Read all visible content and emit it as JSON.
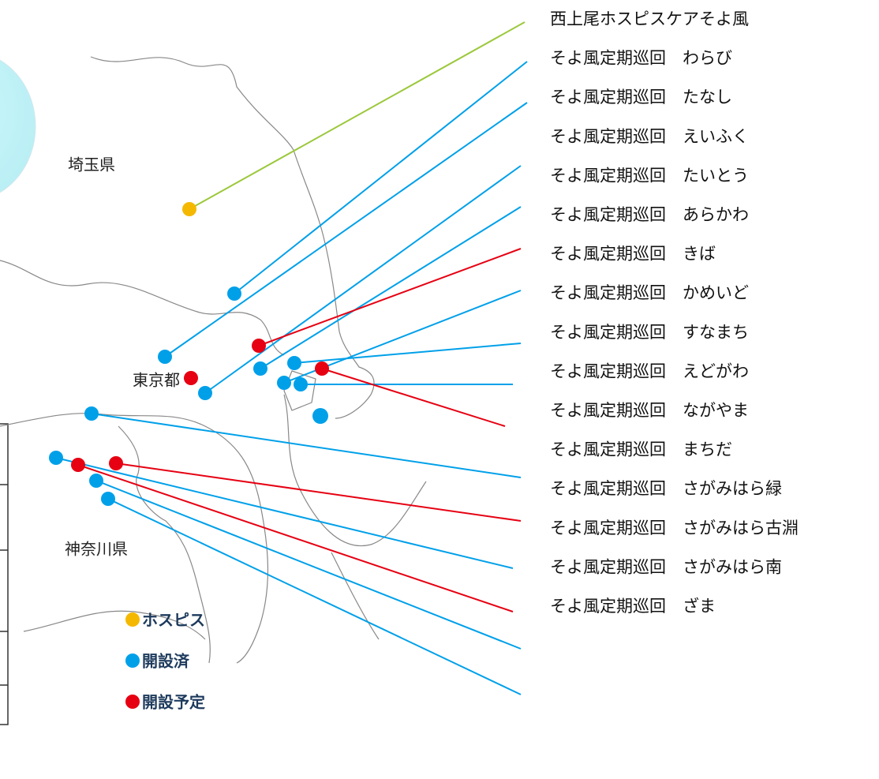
{
  "regions": [
    "埼玉県",
    "東京都",
    "神奈川県"
  ],
  "sites": [
    {
      "name": "西上尾ホスピスケアそよ風",
      "color": "#f5b800",
      "line": "#9cc83c"
    },
    {
      "name": "そよ風定期巡回　わらび",
      "color": "#00a0e9",
      "line": "#00a0e9"
    },
    {
      "name": "そよ風定期巡回　たなし",
      "color": "#00a0e9",
      "line": "#00a0e9"
    },
    {
      "name": "そよ風定期巡回　えいふく",
      "color": "#00a0e9",
      "line": "#00a0e9"
    },
    {
      "name": "そよ風定期巡回　たいとう",
      "color": "#00a0e9",
      "line": "#00a0e9"
    },
    {
      "name": "そよ風定期巡回　あらかわ",
      "color": "#e60012",
      "line": "#e60012"
    },
    {
      "name": "そよ風定期巡回　きば",
      "color": "#00a0e9",
      "line": "#00a0e9"
    },
    {
      "name": "そよ風定期巡回　かめいど",
      "color": "#00a0e9",
      "line": "#00a0e9"
    },
    {
      "name": "そよ風定期巡回　すなまち",
      "color": "#00a0e9",
      "line": "#00a0e9"
    },
    {
      "name": "そよ風定期巡回　えどがわ",
      "color": "#e60012",
      "line": "#e60012"
    },
    {
      "name": "そよ風定期巡回　ながやま",
      "color": "#00a0e9",
      "line": "#00a0e9"
    },
    {
      "name": "そよ風定期巡回　まちだ",
      "color": "#e60012",
      "line": "#e60012"
    },
    {
      "name": "そよ風定期巡回　さがみはら緑",
      "color": "#00a0e9",
      "line": "#00a0e9"
    },
    {
      "name": "そよ風定期巡回　さがみはら古淵",
      "color": "#e60012",
      "line": "#e60012"
    },
    {
      "name": "そよ風定期巡回　さがみはら南",
      "color": "#00a0e9",
      "line": "#00a0e9"
    },
    {
      "name": "そよ風定期巡回　ざま",
      "color": "#00a0e9",
      "line": "#00a0e9"
    }
  ],
  "legend": [
    {
      "label": "ホスピス",
      "color": "#f5b800"
    },
    {
      "label": "開設済",
      "color": "#00a0e9"
    },
    {
      "label": "開設予定",
      "color": "#e60012"
    }
  ]
}
